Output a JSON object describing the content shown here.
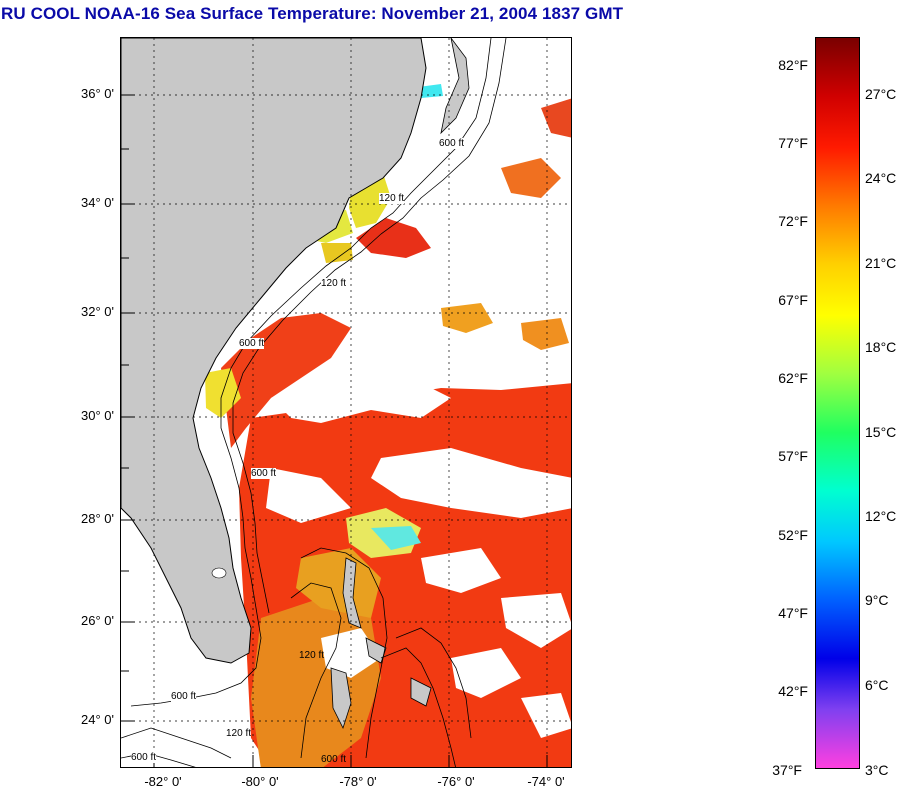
{
  "title": "RU COOL  NOAA-16  Sea Surface Temperature:  November 21, 2004 1837 GMT",
  "map": {
    "latitude_labels": [
      "36° 0'",
      "34° 0'",
      "32° 0'",
      "30° 0'",
      "28° 0'",
      "26° 0'",
      "24° 0'"
    ],
    "longitude_labels": [
      "-82° 0'",
      "-80° 0'",
      "-78° 0'",
      "-76° 0'",
      "-74° 0'"
    ],
    "contour_labels": [
      "120 ft",
      "600 ft",
      "120 ft",
      "600 ft",
      "120 ft",
      "600 ft",
      "120 ft",
      "600 ft",
      "600 ft",
      "600 ft"
    ],
    "colors": {
      "land": "#c8c8c8",
      "cloud": "#ffffff",
      "warm_water": "#f23a12",
      "mid_water": "#f08a18",
      "cool_water": "#d8e818",
      "cold_water": "#40e8f0"
    }
  },
  "colorbar": {
    "fahrenheit_labels": [
      "82°F",
      "77°F",
      "72°F",
      "67°F",
      "62°F",
      "57°F",
      "52°F",
      "47°F",
      "42°F",
      "37°F"
    ],
    "celsius_labels": [
      "27°C",
      "24°C",
      "21°C",
      "18°C",
      "15°C",
      "12°C",
      "9°C",
      "6°C",
      "3°C"
    ],
    "colors": [
      "#7a0000",
      "#d00000",
      "#ff1a00",
      "#ff7a00",
      "#ffd000",
      "#ffff00",
      "#a0ff40",
      "#20ff60",
      "#00ffd0",
      "#00c8ff",
      "#0060ff",
      "#0000e8",
      "#8040f0",
      "#ff40e0"
    ]
  }
}
